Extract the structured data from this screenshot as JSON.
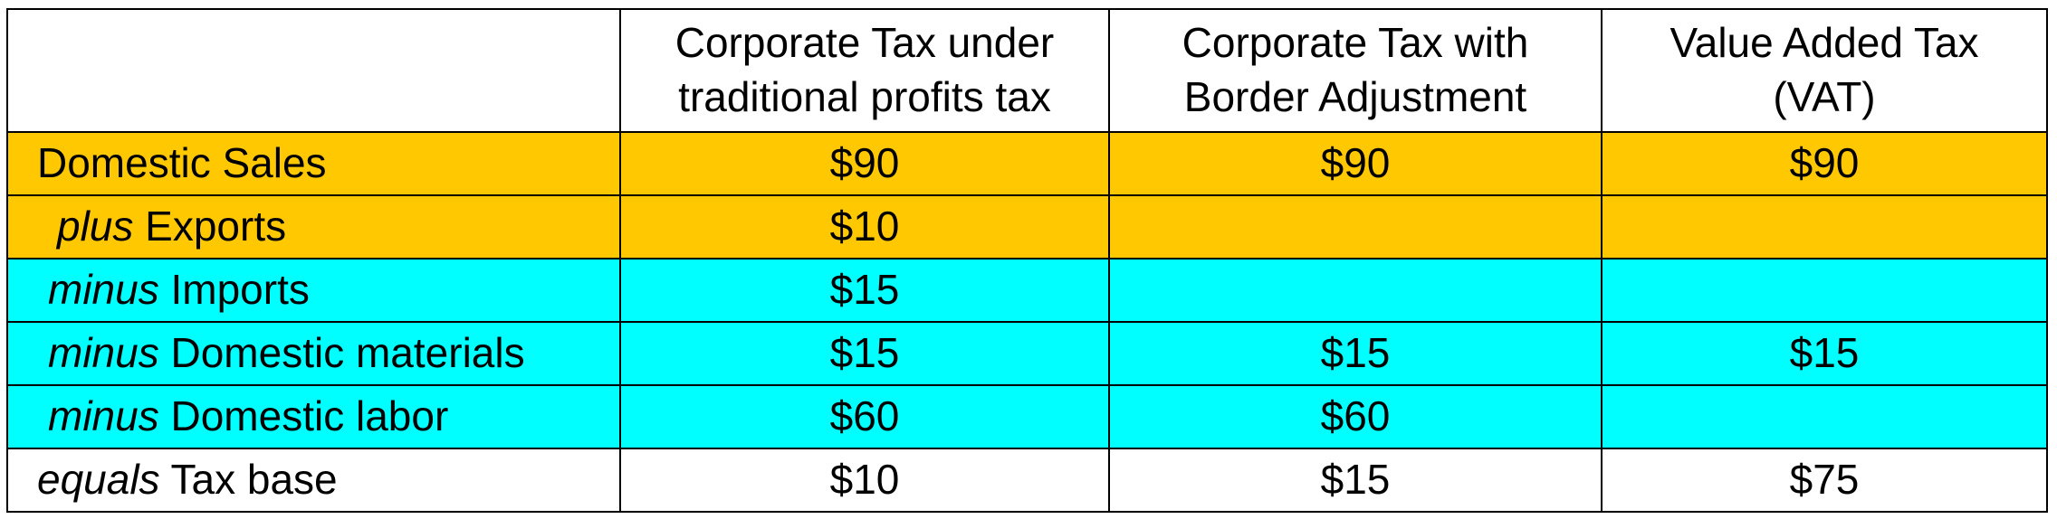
{
  "table": {
    "header": [
      [
        "Corporate Tax under",
        "traditional profits tax"
      ],
      [
        "Corporate Tax with",
        "Border Adjustment"
      ],
      [
        "Value Added Tax",
        "(VAT)"
      ]
    ],
    "rows": [
      {
        "label": {
          "text": "Domestic Sales"
        },
        "cells": [
          "$90",
          "$90",
          "$90"
        ]
      },
      {
        "label": {
          "prefix": "plus",
          "text": "Exports"
        },
        "cells": [
          "$10",
          null,
          null
        ]
      },
      {
        "label": {
          "prefix": "minus",
          "text": "Imports"
        },
        "cells": [
          "$15",
          null,
          null
        ]
      },
      {
        "label": {
          "prefix": "minus",
          "text": "Domestic materials"
        },
        "cells": [
          "$15",
          "$15",
          "$15"
        ]
      },
      {
        "label": {
          "prefix": "minus",
          "text": "Domestic labor"
        },
        "cells": [
          "$60",
          "$60",
          null
        ]
      },
      {
        "label": {
          "prefix": "equals",
          "text": "Tax base"
        },
        "cells": [
          "$10",
          "$15",
          "$75"
        ]
      }
    ]
  }
}
